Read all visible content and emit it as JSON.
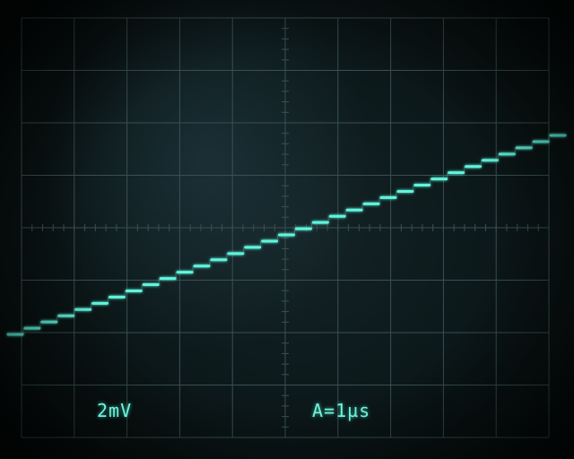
{
  "display": {
    "volts_per_div": "2mV",
    "time_base": "A=1µs"
  },
  "colors": {
    "trace": "#5ff5dc",
    "graticule": "#3a5052"
  },
  "trace": {
    "shape": "staircase ramp",
    "steps": 33
  }
}
